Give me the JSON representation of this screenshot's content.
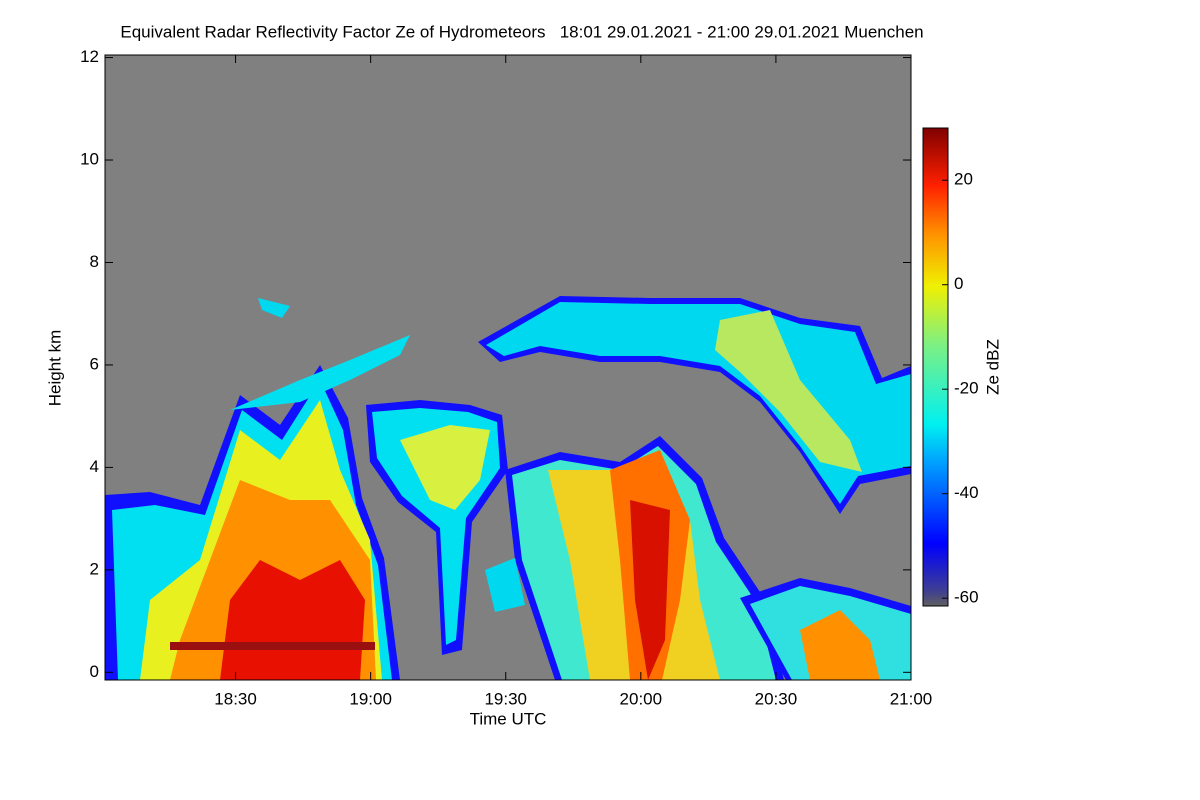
{
  "chart_data": {
    "type": "heatmap",
    "title": "Equivalent Radar Reflectivity Factor Ze of Hydrometeors   18:01 29.01.2021 - 21:00 29.01.2021 Muenchen",
    "xlabel": "Time UTC",
    "ylabel": "Height km",
    "xlim": [
      18.0167,
      21.0
    ],
    "xticks": [
      {
        "value": 18.5,
        "label": "18:30"
      },
      {
        "value": 19,
        "label": "19:00"
      },
      {
        "value": 19.5,
        "label": "19:30"
      },
      {
        "value": 20,
        "label": "20:00"
      },
      {
        "value": 20.5,
        "label": "20:30"
      },
      {
        "value": 21,
        "label": "21:00"
      }
    ],
    "ylim": [
      -0.15,
      12.05
    ],
    "yticks": [
      0,
      2,
      4,
      6,
      8,
      10,
      12
    ],
    "colorbar": {
      "label": "Ze dBZ",
      "lim": [
        -61.5,
        30
      ],
      "ticks": [
        20,
        0,
        -20,
        -40,
        -60
      ]
    }
  }
}
